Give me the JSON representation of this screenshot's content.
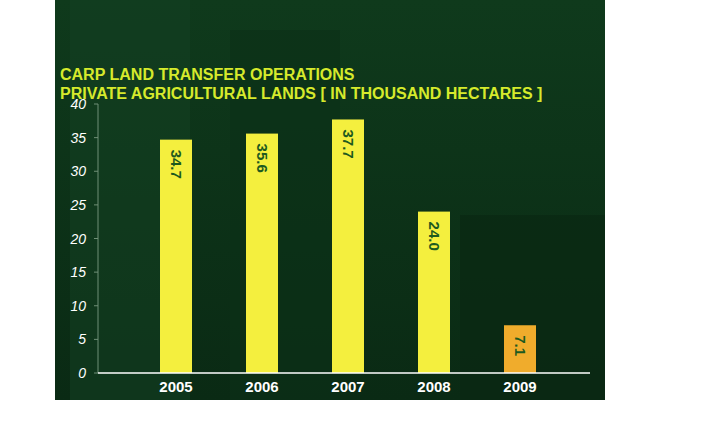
{
  "chart_data": {
    "type": "bar",
    "title": "CARP LAND TRANSFER OPERATIONS",
    "subtitle": "PRIVATE AGRICULTURAL LANDS [ IN THOUSAND HECTARES ]",
    "categories": [
      "2005",
      "2006",
      "2007",
      "2008",
      "2009"
    ],
    "values": [
      34.7,
      35.6,
      37.7,
      24.0,
      7.1
    ],
    "value_labels": [
      "34.7",
      "35.6",
      "37.7",
      "24.0",
      "7.1"
    ],
    "colors": [
      "#f4ef3e",
      "#f4ef3e",
      "#f4ef3e",
      "#f4ef3e",
      "#f0ac2c"
    ],
    "ylim": [
      0,
      40
    ],
    "yticks": [
      0,
      5,
      10,
      15,
      20,
      25,
      30,
      35,
      40
    ],
    "grid": false,
    "data_labels": true
  }
}
